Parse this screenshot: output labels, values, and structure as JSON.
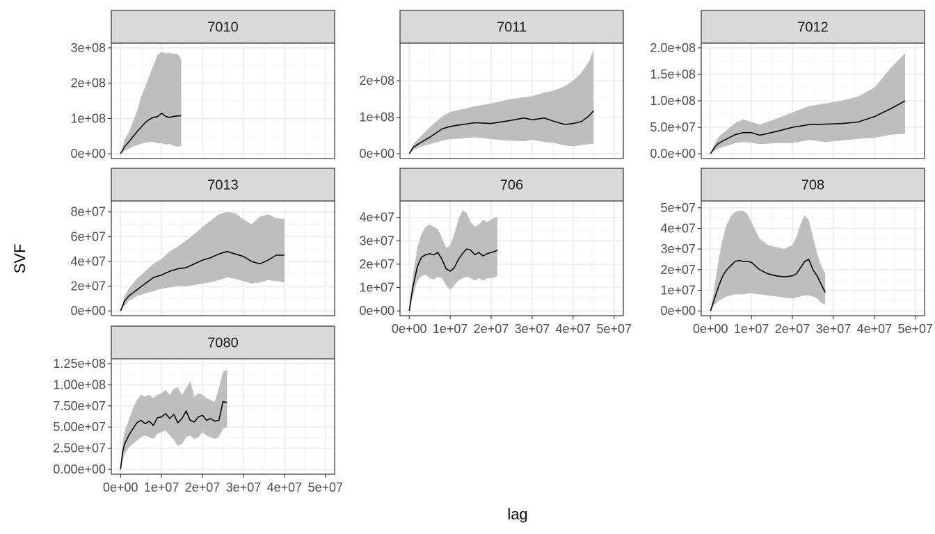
{
  "chart_data": {
    "type": "line",
    "layout": "facet-wrap",
    "xlabel": "lag",
    "ylabel": "SVF",
    "xlim": [
      0,
      50000000
    ],
    "x_ticks": [
      0,
      10000000,
      20000000,
      30000000,
      40000000,
      50000000
    ],
    "x_tick_labels": [
      "0e+00",
      "1e+07",
      "2e+07",
      "3e+07",
      "4e+07",
      "5e+07"
    ],
    "grid": true,
    "colors": {
      "line": "#000000",
      "ribbon": "#bebebe",
      "strip": "#d9d9d9",
      "grid_major": "#ebebeb",
      "grid_minor": "#f4f4f4",
      "border": "#333333"
    },
    "panels": [
      {
        "title": "7010",
        "ylim": [
          0,
          300000000
        ],
        "y_ticks": [
          0,
          100000000,
          200000000,
          300000000
        ],
        "y_tick_labels": [
          "0e+00",
          "1e+08",
          "2e+08",
          "3e+08"
        ],
        "x_max": 14800000,
        "x": [
          0,
          1000000,
          2000000,
          3000000,
          4000000,
          5000000,
          6000000,
          7000000,
          8000000,
          9000000,
          10000000,
          11000000,
          12000000,
          13000000,
          14000000,
          14800000
        ],
        "y": [
          0,
          20000000,
          33000000,
          48000000,
          62000000,
          75000000,
          88000000,
          97000000,
          103000000,
          105000000,
          115000000,
          106000000,
          103000000,
          106000000,
          107000000,
          108000000
        ],
        "lower": [
          0,
          8000000,
          14000000,
          20000000,
          24000000,
          28000000,
          31000000,
          33000000,
          34000000,
          29000000,
          30000000,
          26000000,
          28000000,
          22000000,
          20000000,
          22000000
        ],
        "upper": [
          0,
          40000000,
          60000000,
          90000000,
          120000000,
          160000000,
          190000000,
          220000000,
          250000000,
          280000000,
          288000000,
          285000000,
          286000000,
          283000000,
          282000000,
          268000000
        ]
      },
      {
        "title": "7011",
        "ylim": [
          0,
          290000000
        ],
        "y_ticks": [
          0,
          100000000,
          200000000
        ],
        "y_tick_labels": [
          "0e+00",
          "1e+08",
          "2e+08"
        ],
        "x_max": 45000000,
        "x": [
          0,
          1000000,
          3000000,
          5000000,
          8000000,
          10000000,
          13000000,
          16000000,
          20000000,
          24000000,
          28000000,
          30000000,
          33000000,
          35000000,
          38000000,
          40000000,
          42000000,
          44000000,
          45000000
        ],
        "y": [
          0,
          18000000,
          32000000,
          45000000,
          68000000,
          75000000,
          80000000,
          85000000,
          83000000,
          90000000,
          98000000,
          93000000,
          98000000,
          90000000,
          80000000,
          83000000,
          88000000,
          105000000,
          118000000
        ],
        "lower": [
          0,
          10000000,
          20000000,
          26000000,
          36000000,
          40000000,
          42000000,
          45000000,
          40000000,
          36000000,
          34000000,
          38000000,
          32000000,
          30000000,
          23000000,
          20000000,
          24000000,
          26000000,
          28000000
        ],
        "upper": [
          0,
          26000000,
          50000000,
          72000000,
          102000000,
          115000000,
          122000000,
          130000000,
          138000000,
          148000000,
          155000000,
          158000000,
          168000000,
          172000000,
          185000000,
          200000000,
          222000000,
          255000000,
          285000000
        ]
      },
      {
        "title": "7012",
        "ylim": [
          0,
          200000000
        ],
        "y_ticks": [
          0,
          50000000,
          100000000,
          150000000,
          200000000
        ],
        "y_tick_labels": [
          "0.0e+00",
          "5.0e+07",
          "1.0e+08",
          "1.5e+08",
          "2.0e+08"
        ],
        "x_max": 47500000,
        "x": [
          0,
          1000000,
          2000000,
          4000000,
          6000000,
          8000000,
          10000000,
          12000000,
          16000000,
          20000000,
          24000000,
          28000000,
          32000000,
          36000000,
          40000000,
          44000000,
          47500000
        ],
        "y": [
          0,
          12000000,
          20000000,
          28000000,
          36000000,
          40000000,
          40000000,
          35000000,
          42000000,
          50000000,
          55000000,
          56000000,
          57000000,
          60000000,
          70000000,
          85000000,
          100000000
        ],
        "lower": [
          0,
          5000000,
          10000000,
          15000000,
          20000000,
          22000000,
          21000000,
          18000000,
          20000000,
          20000000,
          26000000,
          22000000,
          25000000,
          28000000,
          30000000,
          36000000,
          38000000
        ],
        "upper": [
          0,
          18000000,
          32000000,
          45000000,
          58000000,
          65000000,
          60000000,
          55000000,
          66000000,
          78000000,
          90000000,
          95000000,
          100000000,
          108000000,
          125000000,
          162000000,
          190000000
        ]
      },
      {
        "title": "7013",
        "ylim": [
          0,
          85000000
        ],
        "y_ticks": [
          0,
          20000000,
          40000000,
          60000000,
          80000000
        ],
        "y_tick_labels": [
          "0e+00",
          "2e+07",
          "4e+07",
          "6e+07",
          "8e+07"
        ],
        "x_max": 40000000,
        "x": [
          0,
          1000000,
          2000000,
          4000000,
          6000000,
          8000000,
          10000000,
          12000000,
          14000000,
          16000000,
          18000000,
          20000000,
          22000000,
          24000000,
          26000000,
          28000000,
          30000000,
          32000000,
          34000000,
          36000000,
          38000000,
          40000000
        ],
        "y": [
          0,
          8000000,
          12000000,
          17000000,
          22000000,
          27000000,
          29000000,
          32000000,
          34000000,
          35000000,
          38000000,
          41000000,
          43000000,
          46000000,
          48000000,
          46000000,
          44000000,
          40000000,
          38000000,
          41000000,
          45000000,
          45000000
        ],
        "lower": [
          0,
          4000000,
          8000000,
          12000000,
          14000000,
          16000000,
          18000000,
          19000000,
          20000000,
          20000000,
          21000000,
          22000000,
          23000000,
          25000000,
          27000000,
          26000000,
          24000000,
          22000000,
          23000000,
          25000000,
          24000000,
          23000000
        ],
        "upper": [
          0,
          12000000,
          18000000,
          26000000,
          32000000,
          38000000,
          42000000,
          48000000,
          52000000,
          57000000,
          62000000,
          68000000,
          73000000,
          78000000,
          80000000,
          79000000,
          74000000,
          70000000,
          76000000,
          78000000,
          75000000,
          74000000
        ]
      },
      {
        "title": "706",
        "ylim": [
          0,
          45000000
        ],
        "y_ticks": [
          0,
          10000000,
          20000000,
          30000000,
          40000000
        ],
        "y_tick_labels": [
          "0e+00",
          "1e+07",
          "2e+07",
          "3e+07",
          "4e+07"
        ],
        "x_max": 21500000,
        "x": [
          0,
          500000,
          1000000,
          2000000,
          3000000,
          4000000,
          5000000,
          6000000,
          7000000,
          8000000,
          9000000,
          10000000,
          11000000,
          12000000,
          13000000,
          14000000,
          15000000,
          16000000,
          17000000,
          18000000,
          19000000,
          20000000,
          21000000,
          21500000
        ],
        "y": [
          0,
          6000000,
          11000000,
          19000000,
          23000000,
          24000000,
          24500000,
          24000000,
          25000000,
          22000000,
          18000000,
          17000000,
          18500000,
          22000000,
          24500000,
          26500000,
          26000000,
          24000000,
          25000000,
          23500000,
          24500000,
          25000000,
          25500000,
          26000000
        ],
        "lower": [
          0,
          3000000,
          7000000,
          13000000,
          15000000,
          15500000,
          14000000,
          13500000,
          14500000,
          14000000,
          11000000,
          9000000,
          11000000,
          13000000,
          14000000,
          14500000,
          14000000,
          13000000,
          14000000,
          13000000,
          14000000,
          14000000,
          14500000,
          15000000
        ],
        "upper": [
          0,
          10000000,
          16000000,
          27000000,
          33000000,
          36000000,
          37000000,
          36000000,
          35000000,
          31000000,
          27000000,
          28000000,
          33000000,
          39000000,
          43000000,
          42000000,
          38000000,
          36000000,
          37000000,
          39000000,
          38000000,
          39000000,
          40000000,
          40000000
        ]
      },
      {
        "title": "708",
        "ylim": [
          0,
          51000000
        ],
        "y_ticks": [
          0,
          10000000,
          20000000,
          30000000,
          40000000,
          50000000
        ],
        "y_tick_labels": [
          "0e+00",
          "1e+07",
          "2e+07",
          "3e+07",
          "4e+07",
          "5e+07"
        ],
        "x_max": 28000000,
        "x": [
          0,
          1000000,
          2000000,
          3000000,
          4000000,
          5000000,
          6000000,
          7000000,
          8000000,
          9000000,
          10000000,
          12000000,
          14000000,
          16000000,
          18000000,
          20000000,
          21000000,
          22000000,
          23000000,
          24000000,
          25000000,
          26000000,
          27000000,
          28000000
        ],
        "y": [
          0,
          6000000,
          12000000,
          17000000,
          20000000,
          22000000,
          24000000,
          24500000,
          24000000,
          24000000,
          23500000,
          20000000,
          18000000,
          17000000,
          16500000,
          17000000,
          18000000,
          21000000,
          24000000,
          25000000,
          20000000,
          17000000,
          13000000,
          9000000
        ],
        "lower": [
          0,
          3000000,
          5000000,
          6000000,
          7000000,
          7500000,
          8000000,
          8000000,
          8000000,
          8500000,
          8500000,
          8000000,
          7500000,
          7000000,
          6500000,
          6000000,
          6500000,
          7000000,
          7500000,
          7500000,
          7000000,
          6000000,
          4000000,
          3000000
        ],
        "upper": [
          0,
          12000000,
          25000000,
          35000000,
          42000000,
          46000000,
          48000000,
          48500000,
          48500000,
          47000000,
          43000000,
          35000000,
          32000000,
          31000000,
          30000000,
          32000000,
          36000000,
          42000000,
          46500000,
          44000000,
          36000000,
          28000000,
          22000000,
          18000000
        ]
      },
      {
        "title": "7080",
        "ylim": [
          0,
          125000000
        ],
        "y_ticks": [
          0,
          25000000,
          50000000,
          75000000,
          100000000,
          125000000
        ],
        "y_tick_labels": [
          "0.00e+00",
          "2.50e+07",
          "5.00e+07",
          "7.50e+07",
          "1.00e+08",
          "1.25e+08"
        ],
        "x_max": 26000000,
        "x": [
          0,
          500000,
          1000000,
          2000000,
          3000000,
          4000000,
          5000000,
          6000000,
          7000000,
          8000000,
          9000000,
          10000000,
          11000000,
          12000000,
          13000000,
          14000000,
          15000000,
          16000000,
          17000000,
          18000000,
          19000000,
          20000000,
          21000000,
          22000000,
          23000000,
          24000000,
          25000000,
          26000000
        ],
        "y": [
          0,
          20000000,
          30000000,
          40000000,
          48000000,
          55000000,
          58000000,
          54000000,
          57000000,
          52000000,
          61000000,
          62000000,
          66000000,
          60000000,
          65000000,
          55000000,
          60000000,
          69000000,
          58000000,
          56000000,
          62000000,
          64000000,
          58000000,
          60000000,
          57000000,
          58000000,
          80000000,
          79000000
        ],
        "lower": [
          0,
          10000000,
          18000000,
          26000000,
          30000000,
          34000000,
          38000000,
          40000000,
          38000000,
          36000000,
          42000000,
          44000000,
          46000000,
          40000000,
          35000000,
          28000000,
          30000000,
          38000000,
          40000000,
          36000000,
          38000000,
          44000000,
          40000000,
          38000000,
          36000000,
          38000000,
          48000000,
          50000000
        ],
        "upper": [
          0,
          32000000,
          45000000,
          58000000,
          72000000,
          82000000,
          88000000,
          86000000,
          88000000,
          84000000,
          88000000,
          90000000,
          94000000,
          88000000,
          95000000,
          97000000,
          88000000,
          96000000,
          104000000,
          86000000,
          90000000,
          88000000,
          84000000,
          82000000,
          80000000,
          96000000,
          115000000,
          118000000
        ]
      }
    ]
  }
}
